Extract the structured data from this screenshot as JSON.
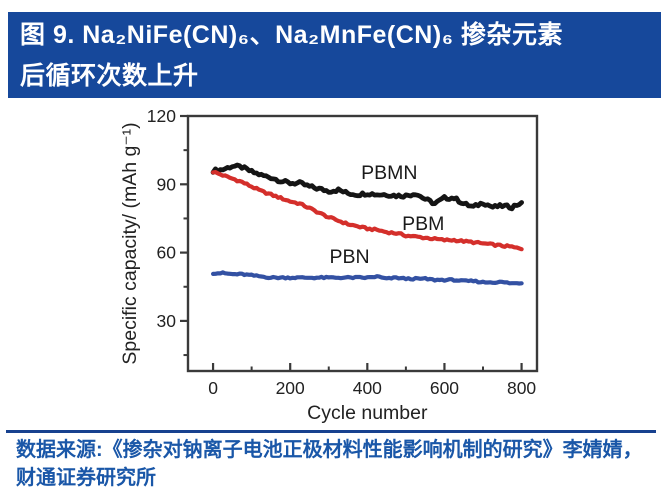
{
  "header": {
    "title_line1": "图 9. Na₂NiFe(CN)₆、Na₂MnFe(CN)₆ 掺杂元素",
    "title_line2": "后循环次数上升",
    "bg_color": "#16489B",
    "text_color": "#FFFFFF"
  },
  "footer": {
    "source_line1": "数据来源:《掺杂对钠离子电池正极材料性能影响机制的研究》李婧婧，",
    "source_line2": "财通证券研究所",
    "rule_color": "#17418F",
    "text_color": "#1A57A8"
  },
  "chart_data": {
    "type": "scatter",
    "title": "",
    "xlabel": "Cycle number",
    "ylabel": "Specific capacity/ (mAh g⁻¹)",
    "xlim": [
      -65,
      840
    ],
    "ylim": [
      8,
      120
    ],
    "x_ticks": [
      0,
      200,
      400,
      600,
      800
    ],
    "x_minor_ticks": [
      100,
      300,
      500,
      700
    ],
    "y_ticks": [
      30,
      60,
      90,
      120
    ],
    "y_minor_ticks": [
      15,
      45,
      75,
      105
    ],
    "grid": false,
    "legend_position": "inline-labels",
    "axis_color": "#3A3A3A",
    "tick_label_color": "#222222",
    "x": [
      0,
      25,
      50,
      75,
      100,
      125,
      150,
      175,
      200,
      225,
      250,
      275,
      300,
      325,
      350,
      375,
      400,
      425,
      450,
      475,
      500,
      525,
      550,
      575,
      600,
      625,
      650,
      675,
      700,
      725,
      750,
      775,
      800
    ],
    "series": [
      {
        "name": "PBMN",
        "color": "#151515",
        "label_x": 457,
        "label_y": 95,
        "values": [
          96,
          96.5,
          98,
          97.5,
          95.5,
          94,
          93,
          91.5,
          90.5,
          90.5,
          89,
          88,
          87,
          87.5,
          86,
          85.5,
          86,
          85.5,
          85.5,
          85,
          85,
          86,
          83.5,
          81.5,
          84,
          84,
          81.5,
          80,
          82,
          80,
          80.5,
          80,
          82
        ]
      },
      {
        "name": "PBM",
        "color": "#D42F2B",
        "label_x": 545,
        "label_y": 72.5,
        "values": [
          95.5,
          94,
          92.5,
          91,
          89,
          87,
          85.5,
          84,
          82.5,
          81.5,
          79.5,
          77.5,
          75.5,
          74,
          72.5,
          71.5,
          70.5,
          70,
          69,
          68.5,
          67.5,
          67,
          66.5,
          66,
          65.5,
          65.5,
          65,
          64.5,
          64,
          63.5,
          63,
          62.5,
          61.5
        ]
      },
      {
        "name": "PBN",
        "color": "#3351A3",
        "label_x": 354,
        "label_y": 58,
        "values": [
          51,
          51,
          50.5,
          50.5,
          50,
          49.5,
          49,
          49,
          49,
          49,
          49,
          49,
          49,
          49,
          49,
          49,
          49,
          49.5,
          48.5,
          49,
          48.5,
          48.5,
          48.5,
          48,
          48,
          48,
          47.5,
          47.5,
          47,
          47,
          47,
          46.5,
          46.5
        ]
      }
    ]
  }
}
